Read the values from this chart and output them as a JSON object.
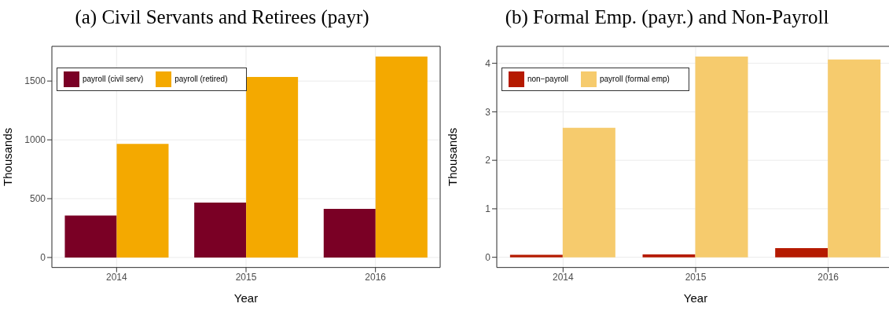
{
  "chart_data": [
    {
      "type": "bar",
      "title": "(a) Civil Servants and Retirees (payr)",
      "xlabel": "Year",
      "ylabel": "Thousands",
      "categories": [
        "2014",
        "2015",
        "2016"
      ],
      "series": [
        {
          "name": "payroll (civil serv)",
          "color": "#7a0025",
          "values": [
            357,
            466,
            413
          ]
        },
        {
          "name": "payroll (retired)",
          "color": "#f4a900",
          "values": [
            966,
            1534,
            1709
          ]
        }
      ],
      "ylim": [
        -85,
        1795
      ],
      "yticks": [
        0,
        500,
        1000,
        1500
      ],
      "grid": true,
      "legend": "top left"
    },
    {
      "type": "bar",
      "title": "(b) Formal Emp. (payr.) and Non-Payroll",
      "xlabel": "Year",
      "ylabel": "Thousands",
      "categories": [
        "2014",
        "2015",
        "2016"
      ],
      "series": [
        {
          "name": "non−payroll",
          "color": "#b51a00",
          "values": [
            0.05,
            0.06,
            0.19
          ]
        },
        {
          "name": "payroll (formal emp)",
          "color": "#f6cb6d",
          "values": [
            2.67,
            4.14,
            4.08
          ]
        }
      ],
      "ylim": [
        -0.21,
        4.35
      ],
      "yticks": [
        0,
        1,
        2,
        3,
        4
      ],
      "grid": true,
      "legend": "top left"
    }
  ]
}
